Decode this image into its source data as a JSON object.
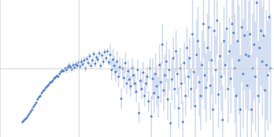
{
  "chart_data": {
    "type": "scatter",
    "x": [
      33,
      35,
      37,
      39,
      41,
      43,
      45,
      47,
      49,
      51,
      53,
      55,
      57,
      59,
      61,
      63,
      65,
      67,
      69,
      71,
      73,
      75,
      77,
      79,
      81,
      83,
      85,
      87,
      89,
      91,
      93,
      95,
      97,
      99,
      101,
      103,
      105,
      107,
      109,
      111,
      113,
      115,
      117,
      119,
      121,
      123,
      125,
      127,
      129,
      131,
      133,
      135,
      137,
      139,
      141,
      143,
      145,
      147,
      149,
      151,
      153,
      155,
      157,
      159,
      161,
      163,
      165,
      167,
      169,
      171,
      173,
      175,
      177,
      179,
      181,
      183,
      185,
      187,
      189,
      191,
      193,
      195,
      197,
      199,
      201,
      203,
      205,
      207,
      209,
      211,
      213,
      215,
      217,
      219,
      221,
      223,
      225,
      227,
      229,
      231,
      233,
      235,
      237,
      239,
      241,
      243,
      245,
      247,
      249,
      251,
      253,
      255,
      257,
      259,
      261,
      263,
      265,
      267,
      269,
      271,
      273,
      275,
      277,
      279,
      281,
      283,
      285,
      287,
      289,
      291,
      293,
      295,
      297,
      299,
      301,
      303,
      305,
      307,
      309,
      311,
      313,
      315,
      317,
      319,
      321,
      323,
      325,
      327,
      329,
      331,
      333,
      335,
      337,
      339,
      341,
      343,
      345,
      347,
      349,
      351,
      353,
      355,
      357,
      359,
      361,
      363,
      365,
      367,
      369,
      371,
      373,
      375,
      377,
      379,
      381,
      383,
      385,
      387,
      389,
      391,
      393,
      395
    ],
    "values": [
      22,
      24,
      26,
      28,
      31,
      34,
      37,
      40,
      44,
      47,
      50,
      55,
      58,
      60,
      64,
      67,
      69,
      72,
      74,
      76,
      79,
      80,
      82,
      85,
      87,
      89,
      88,
      92,
      95,
      97,
      96,
      100,
      98,
      101,
      104,
      102,
      99,
      105,
      101,
      106,
      104,
      109,
      103,
      110,
      106,
      112,
      100,
      114,
      108,
      118,
      104,
      112,
      121,
      107,
      116,
      113,
      122,
      104,
      119,
      110,
      124,
      115,
      125,
      109,
      120,
      98,
      113,
      104,
      95,
      110,
      88,
      102,
      56,
      100,
      86,
      108,
      78,
      96,
      84,
      74,
      100,
      90,
      78,
      66,
      98,
      35,
      82,
      70,
      94,
      60,
      78,
      88,
      52,
      100,
      30,
      85,
      64,
      92,
      74,
      58,
      105,
      80,
      135,
      68,
      90,
      110,
      55,
      98,
      20,
      84,
      115,
      70,
      125,
      92,
      42,
      100,
      78,
      22,
      108,
      60,
      130,
      88,
      115,
      70,
      150,
      95,
      45,
      120,
      140,
      80,
      60,
      105,
      165,
      90,
      72,
      130,
      160,
      75,
      112,
      40,
      155,
      98,
      170,
      62,
      118,
      88,
      25,
      140,
      105,
      158,
      70,
      125,
      85,
      165,
      152,
      100,
      60,
      140,
      112,
      40,
      160,
      92,
      148,
      120,
      75,
      118,
      150,
      40,
      100,
      135,
      88,
      196,
      60,
      130,
      155,
      110,
      148,
      68,
      105,
      90,
      175,
      100
    ],
    "error": [
      2,
      2,
      2,
      2,
      2,
      2,
      2,
      2,
      2,
      2,
      2,
      2,
      2,
      2,
      2,
      2,
      2,
      2,
      2,
      2,
      2,
      2,
      2,
      2,
      2,
      2,
      2,
      2,
      2,
      2,
      2,
      2,
      5,
      5,
      5,
      5,
      5,
      5,
      5,
      5,
      5,
      5,
      5,
      5,
      5,
      5,
      5,
      5,
      5,
      5,
      5,
      5,
      5,
      5,
      5,
      5,
      5,
      5,
      5,
      5,
      5,
      5,
      5,
      5,
      15,
      15,
      15,
      15,
      15,
      15,
      15,
      15,
      15,
      15,
      15,
      15,
      15,
      15,
      15,
      15,
      15,
      15,
      15,
      15,
      15,
      15,
      15,
      15,
      15,
      15,
      15,
      15,
      15,
      15,
      30,
      30,
      30,
      30,
      30,
      30,
      30,
      30,
      30,
      30,
      30,
      30,
      30,
      30,
      30,
      30,
      30,
      30,
      30,
      30,
      30,
      30,
      30,
      30,
      30,
      30,
      30,
      30,
      30,
      30,
      50,
      50,
      50,
      50,
      50,
      50,
      50,
      50,
      50,
      50,
      50,
      50,
      50,
      50,
      50,
      50,
      50,
      50,
      50,
      50,
      50,
      50,
      50,
      50,
      50,
      50,
      50,
      50,
      50,
      50,
      80,
      80,
      80,
      80,
      80,
      80,
      80,
      80,
      80,
      80,
      80,
      80,
      80,
      80,
      80,
      80,
      80,
      80,
      80,
      80,
      80,
      80,
      80,
      80,
      80,
      80,
      80,
      80
    ],
    "color": "#3a6bc4",
    "marker": "circle",
    "xlim": [
      0,
      400
    ],
    "xticks": [
      115
    ],
    "ylim": [
      0,
      200
    ],
    "yticks": [
      100
    ],
    "grid": true,
    "tick_labels": false
  }
}
